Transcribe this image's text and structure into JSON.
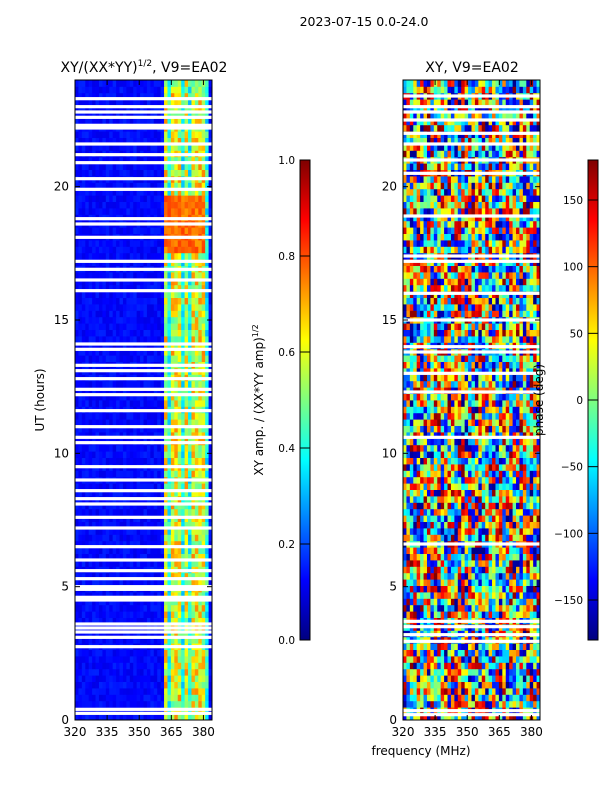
{
  "suptitle": "2023-07-15 0.0-24.0",
  "xlabel": "frequency (MHz)",
  "colors": {
    "background": "#ffffff",
    "gap": "#ffffff",
    "jet": [
      "#00007f",
      "#0000ff",
      "#007fff",
      "#00ffff",
      "#7fff7f",
      "#ffff00",
      "#ff7f00",
      "#ff0000",
      "#7f0000"
    ]
  },
  "chart_data": [
    {
      "type": "heatmap",
      "id": "amplitude",
      "title": "XY/(XX*YY)",
      "title_sup": "1/2",
      "title_suffix": ", V9=EA02",
      "xlabel": "frequency (MHz)",
      "ylabel": "UT (hours)",
      "xlim": [
        320,
        384
      ],
      "ylim": [
        0,
        24
      ],
      "xticks": [
        320,
        335,
        350,
        365,
        380
      ],
      "yticks": [
        0,
        5,
        10,
        15,
        20
      ],
      "flagged_rows_ut": [
        0.25,
        0.4,
        2.75,
        3.1,
        3.3,
        3.45,
        3.6,
        4.5,
        4.6,
        4.9,
        5.0,
        5.3,
        5.6,
        6.0,
        6.5,
        7.2,
        7.6,
        8.1,
        8.3,
        8.6,
        9.0,
        9.5,
        10.4,
        10.6,
        11.0,
        11.6,
        12.2,
        12.4,
        12.8,
        13.1,
        13.3,
        13.9,
        14.1,
        16.1,
        16.5,
        16.9,
        17.2,
        18.1,
        18.6,
        18.8,
        19.9,
        20.3,
        20.9,
        21.2,
        21.6,
        22.2,
        22.3,
        22.6,
        22.8,
        23.0,
        23.3
      ],
      "active_band_mhz": [
        361,
        382
      ],
      "bright_channels_mhz": [
        362,
        366,
        368,
        372,
        375,
        377,
        379
      ],
      "hot_region": {
        "freq_mhz": [
          361,
          380
        ],
        "ut": [
          17.5,
          19.6
        ],
        "level": 0.72
      },
      "colorbar": {
        "label": "XY amp. / (XX*YY amp)",
        "label_sup": "1/2",
        "min": 0.0,
        "max": 1.0,
        "ticks": [
          "0.0",
          "0.2",
          "0.4",
          "0.6",
          "0.8",
          "1.0"
        ],
        "tick_values": [
          0.0,
          0.2,
          0.4,
          0.6,
          0.8,
          1.0
        ]
      }
    },
    {
      "type": "heatmap",
      "id": "phase",
      "title": "XY, V9=EA02",
      "xlabel": "frequency (MHz)",
      "ylabel": "",
      "xlim": [
        320,
        384
      ],
      "ylim": [
        0,
        24
      ],
      "xticks": [
        320,
        335,
        350,
        365,
        380
      ],
      "yticks": [
        0,
        5,
        10,
        15,
        20
      ],
      "flagged_rows_ut": [
        0.2,
        0.35,
        2.95,
        3.2,
        3.5,
        3.7,
        6.6,
        10.6,
        12.3,
        13.0,
        13.8,
        14.0,
        15.0,
        16.0,
        17.2,
        17.4,
        18.9,
        20.5,
        21.0,
        21.6,
        22.0,
        22.5,
        22.8,
        23.0,
        23.4
      ],
      "colorbar": {
        "label": "phase (deg)",
        "min": -180,
        "max": 180,
        "ticks": [
          "−150",
          "−100",
          "−50",
          "0",
          "50",
          "100",
          "150"
        ],
        "tick_values": [
          -150,
          -100,
          -50,
          0,
          50,
          100,
          150
        ]
      }
    }
  ]
}
